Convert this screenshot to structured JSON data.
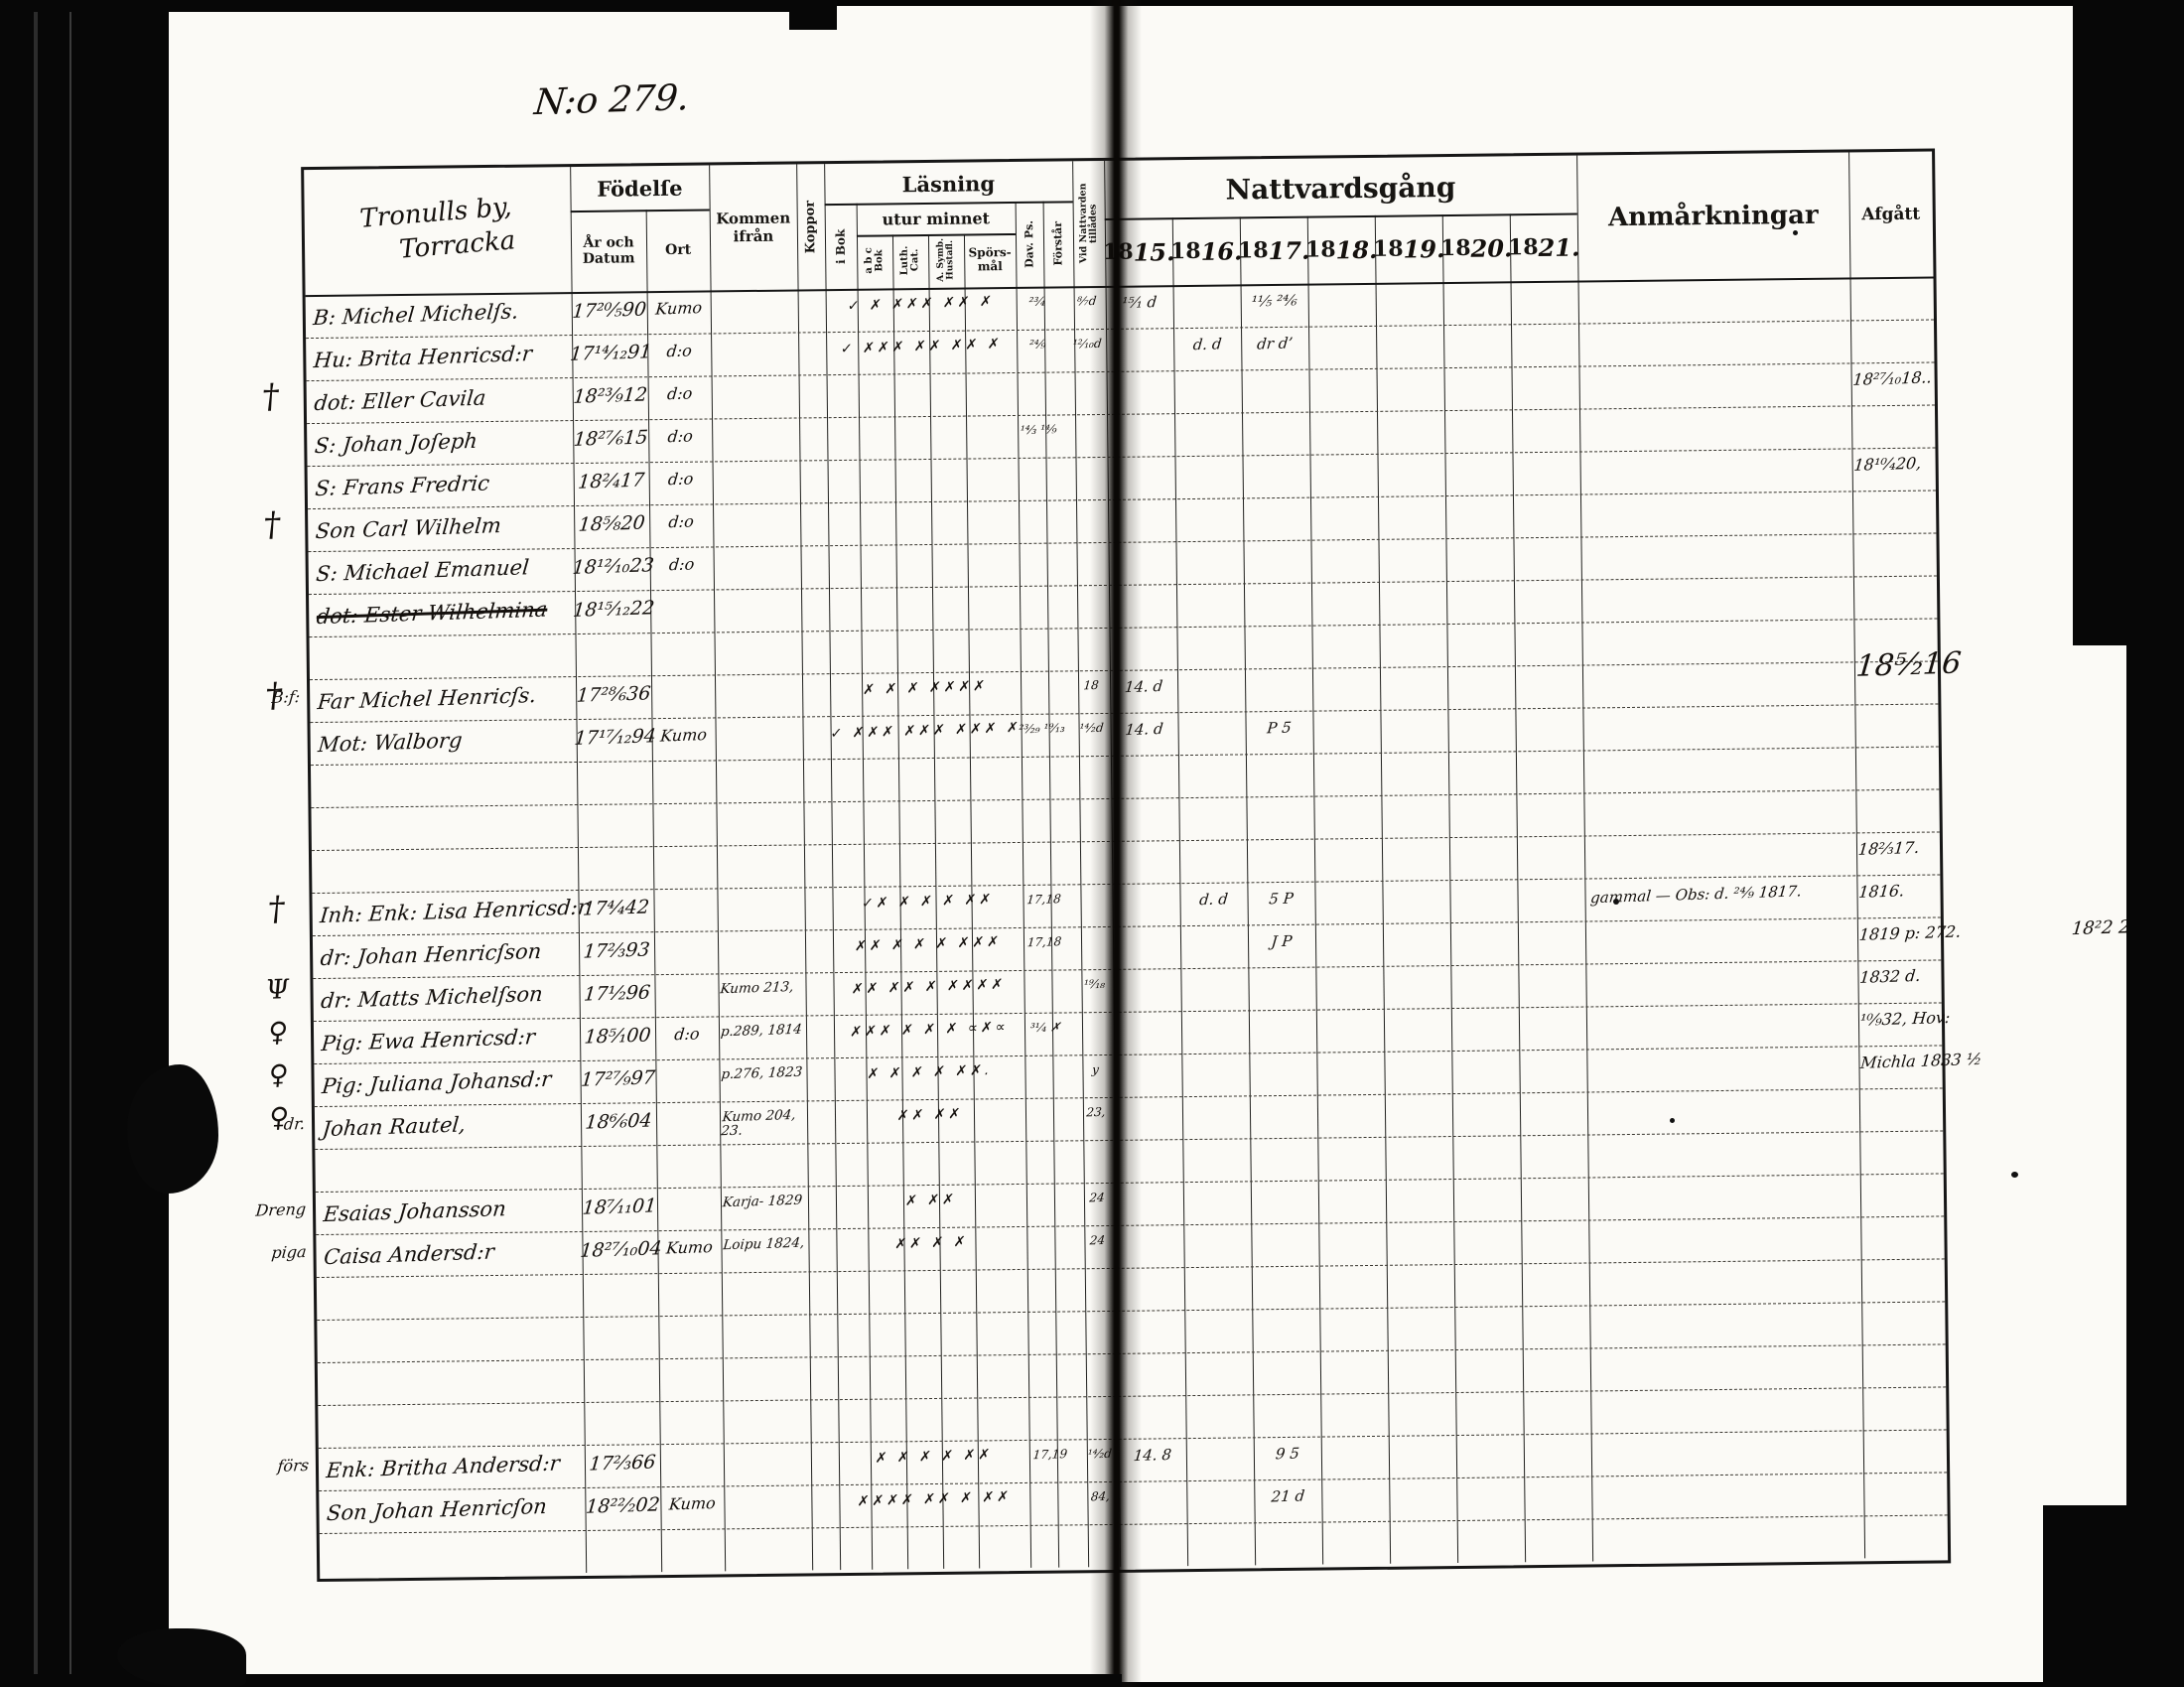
{
  "page": {
    "number_label": "N:o 279.",
    "colors": {
      "paper": "#fbfaf6",
      "ink": "#14100d"
    }
  },
  "header": {
    "name_block": {
      "line1": "Tronulls by,",
      "line2": "Torracka"
    },
    "fodelse": {
      "label": "Födelſe",
      "ar": "År och Datum",
      "ort": "Ort"
    },
    "kommen": "Kommen ifrån",
    "koppor": "Koppor",
    "lasning": {
      "label": "Läsning",
      "i_bok": "i Bok",
      "utur": "utur minnet",
      "abc": "a b c Bok",
      "cat": "Luth. Cat.",
      "symb": "A. Symb. Hustafl.",
      "spors": "Spörs-mål",
      "dav": "Dav. Ps.",
      "forstar": "Förstår"
    },
    "vid": "Vid Nattvarden tillådes",
    "nattvard": {
      "label": "Nattvardsgång",
      "years": [
        "1815.",
        "1816.",
        "1817.",
        "1818.",
        "1819.",
        "1820.",
        "1821."
      ]
    },
    "anm": "Anmårkningar",
    "afgatt": "Afgått"
  },
  "rows": [
    {
      "name": "B: Michel Michelſs.",
      "birth": "17²⁰⁄₅90",
      "ort": "Kumo",
      "marks": "✓ ✗ ✗✗✗ ✗✗ ✗",
      "extra": "²³⁄₄",
      "vid": "⁸⁄₇d",
      "comm": {
        "0": "¹⁵⁄₁ d",
        "2": "¹¹⁄₅ ²⁴⁄₆"
      }
    },
    {
      "name": "Hu: Brita Henricsd:r",
      "birth": "17¹⁴⁄₁₂91",
      "ort": "d:o",
      "marks": "✓ ✗✗✗ ✗✗ ✗✗ ✗",
      "extra": "²⁴⁄₉",
      "vid": "¹²⁄₁₀d",
      "comm": {
        "1": "d. d",
        "2": "dr d’"
      }
    },
    {
      "sym": "†",
      "name": "dot: Eller Cavila",
      "birth": "18²³⁄₉12",
      "ort": "d:o",
      "afgatt": "18²⁷⁄₁₀18.."
    },
    {
      "name": "S: Johan Joſeph",
      "birth": "18²⁷⁄₆15",
      "ort": "d:o",
      "extra": "¹⁴⁄₃ ¹⁴⁄₉"
    },
    {
      "name": "S: Frans Fredric",
      "birth": "18²⁄₄17",
      "ort": "d:o",
      "afgatt": "18¹⁰⁄₄20,"
    },
    {
      "sym": "†",
      "name": "Son Carl Wilhelm",
      "birth": "18⁵⁄₈20",
      "ort": "d:o"
    },
    {
      "name": "S: Michael Emanuel",
      "birth": "18¹²⁄₁₀23",
      "ort": "d:o"
    },
    {
      "name": "dot: Ester Wilhelmina",
      "birth": "18¹⁵⁄₁₂22",
      "struck": true
    },
    {},
    {
      "sym": "†",
      "pre": "B:f:",
      "name": "Far Michel Henricſs.",
      "birth": "17²⁸⁄₆36",
      "marks": "✗ ✗ ✗ ✗✗✗✗",
      "vid": "18",
      "comm": {
        "0": "14. d"
      },
      "afgatt": "18⁵⁄₂16",
      "afgatt_big": true
    },
    {
      "name": "Mot: Walborg",
      "birth": "17¹⁷⁄₁₂94",
      "ort": "Kumo",
      "marks": "✓ ✗✗✗ ✗✗✗ ✗✗✗ ✗",
      "extra": "²³⁄₂₉ ¹⁹⁄₁₃",
      "vid": "¹⁴⁄₂d",
      "comm": {
        "0": "14. d",
        "2": "P 5"
      }
    },
    {},
    {},
    {
      "afgatt": "18²⁄₃17."
    },
    {
      "sym": "†",
      "name": "Inh: Enk: Lisa Henricsd:r",
      "birth": "17⁴⁄₄42",
      "marks": "✓✗ ✗ ✗ ✗ ✗✗",
      "extra": "17,18",
      "comm": {
        "1": "d. d",
        "2": "5 P"
      },
      "anm": "gammal — Obs: d. ²⁴⁄₉ 1817.",
      "afgatt": "1816."
    },
    {
      "name": "dr: Johan Henricſson",
      "birth": "17²⁄₃93",
      "marks": "✗✗ ✗ ✗ ✗ ✗✗✗",
      "extra": "17,18",
      "comm": {
        "2": "J P"
      },
      "afgatt": "1819 p: 272.",
      "out": "18²2 2,"
    },
    {
      "sym": "Ψ",
      "name": "dr: Matts Michelſson",
      "birth": "17¹⁄₂96",
      "kommen": "Kumo 213,",
      "marks": "✗✗ ✗✗ ✗ ✗✗✗✗",
      "vid": "¹⁹⁄₁₈",
      "afgatt": "1832 d."
    },
    {
      "sym": "♀",
      "name": "Pig: Ewa Henricsd:r",
      "birth": "18⁵⁄₁00",
      "ort": "d:o",
      "kommen": "p.289, 1814",
      "marks": "✗✗✗ ✗ ✗ ✗ ∝✗∝",
      "extra": "³¹⁄₄ ✗",
      "afgatt": "¹⁰⁄₉32, Hov:"
    },
    {
      "sym": "♀",
      "name": "Pig: Juliana Johansd:r",
      "birth": "17²⁷⁄₉97",
      "kommen": "p.276, 1823",
      "marks": "✗ ✗ ✗ ✗ ✗✗.",
      "vid": "y",
      "afgatt": "Michla 1833 ½"
    },
    {
      "sym": "♀",
      "pre": "dr.",
      "name": "Johan Rautel,",
      "birth": "18⁶⁄₆04",
      "kommen": "Kumo 204, 23.",
      "marks": "✗✗   ✗✗",
      "vid": "23,"
    },
    {},
    {
      "pre": "Dreng",
      "name": "Esaias Johansson",
      "birth": "18⁷⁄₁₁01",
      "kommen": "Karja- 1829",
      "marks": "✗    ✗✗",
      "vid": "24"
    },
    {
      "pre": "piga",
      "name": "Caisa Andersd:r",
      "birth": "18²⁷⁄₁₀04",
      "ort": "Kumo",
      "kommen": "Loipu 1824,",
      "marks": "✗✗   ✗ ✗",
      "vid": "24"
    },
    {},
    {},
    {},
    {},
    {
      "pre": "förs",
      "name": "Enk: Britha Andersd:r",
      "birth": "17²⁄₃66",
      "marks": "✗ ✗ ✗ ✗ ✗✗",
      "extra": "17,19",
      "vid": "¹⁴⁄₂d",
      "comm": {
        "0": "14. 8",
        "2": "9 5"
      }
    },
    {
      "name": "Son Johan Henricſon",
      "birth": "18²²⁄₂02",
      "ort": "Kumo",
      "marks": "✗✗✗✗ ✗✗ ✗ ✗✗",
      "vid": "84,",
      "comm": {
        "2": "21 d"
      }
    },
    {}
  ]
}
